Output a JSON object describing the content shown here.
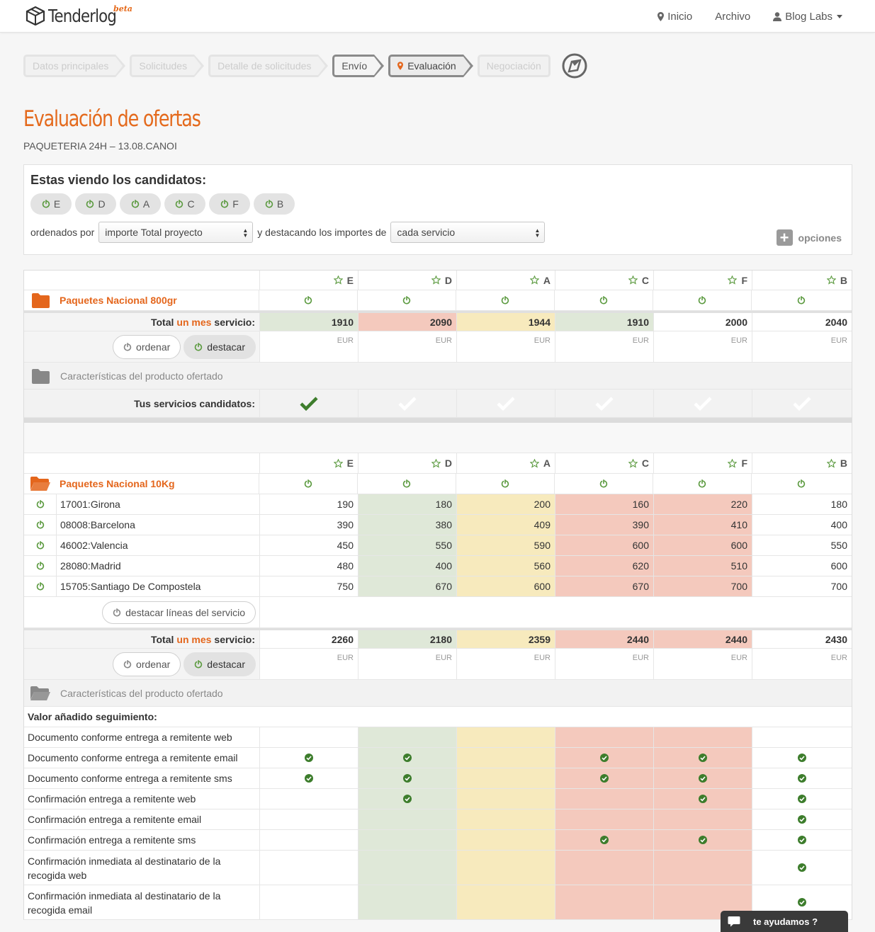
{
  "nav": {
    "brand": "Tenderlog",
    "beta": "beta",
    "links": [
      {
        "label": "Inicio",
        "icon": "map-marker-icon"
      },
      {
        "label": "Archivo"
      },
      {
        "label": "Blog Labs",
        "icon": "user-icon",
        "dropdown": true
      }
    ]
  },
  "steps": [
    {
      "label": "Datos principales",
      "state": "pending"
    },
    {
      "label": "Solicitudes",
      "state": "pending"
    },
    {
      "label": "Detalle de solicitudes",
      "state": "pending"
    },
    {
      "label": "Envío",
      "state": "done"
    },
    {
      "label": "Evaluación",
      "state": "active"
    },
    {
      "label": "Negociación",
      "state": "pending"
    }
  ],
  "page": {
    "title": "Evaluación de ofertas",
    "subtitle": "PAQUETERIA 24H – 13.08.CANOI"
  },
  "candidates": {
    "title": "Estas viendo los candidatos:",
    "pills": [
      "E",
      "D",
      "A",
      "C",
      "F",
      "B"
    ],
    "sort_label": "ordenados por",
    "sort_value": "importe Total proyecto",
    "highlight_label": "y destacando los importes de",
    "highlight_value": "cada servicio",
    "options_label": "opciones"
  },
  "columns": [
    "E",
    "D",
    "A",
    "C",
    "F",
    "B"
  ],
  "section1": {
    "name": "Paquetes Nacional 800gr",
    "total_prefix": "Total",
    "total_hl": "un mes",
    "total_suffix": "servicio:",
    "totals": [
      "1910",
      "2090",
      "1944",
      "1910",
      "2000",
      "2040"
    ],
    "currency": "EUR",
    "btn_order": "ordenar",
    "btn_highlight": "destacar",
    "characteristics": "Características del producto ofertado",
    "candidates_label": "Tus servicios candidatos:"
  },
  "section2": {
    "name": "Paquetes Nacional 10Kg",
    "lines": [
      {
        "label": "17001:Girona",
        "values": [
          "190",
          "180",
          "200",
          "160",
          "220",
          "180"
        ]
      },
      {
        "label": "08008:Barcelona",
        "values": [
          "390",
          "380",
          "409",
          "390",
          "410",
          "400"
        ]
      },
      {
        "label": "46002:Valencia",
        "values": [
          "450",
          "550",
          "590",
          "600",
          "600",
          "550"
        ]
      },
      {
        "label": "28080:Madrid",
        "values": [
          "480",
          "400",
          "560",
          "620",
          "510",
          "600"
        ]
      },
      {
        "label": "15705:Santiago De Compostela",
        "values": [
          "750",
          "670",
          "600",
          "670",
          "700",
          "700"
        ]
      }
    ],
    "btn_lines": "destacar líneas del servicio",
    "total_prefix": "Total",
    "total_hl": "un mes",
    "total_suffix": "servicio:",
    "totals": [
      "2260",
      "2180",
      "2359",
      "2440",
      "2440",
      "2430"
    ],
    "currency": "EUR",
    "btn_order": "ordenar",
    "btn_highlight": "destacar",
    "characteristics": "Características del producto ofertado",
    "value_added_title": "Valor añadido seguimiento:",
    "features": [
      {
        "label": "Documento conforme entrega a remitente web",
        "checks": [
          false,
          false,
          false,
          false,
          false,
          false
        ]
      },
      {
        "label": "Documento conforme entrega a remitente email",
        "checks": [
          true,
          true,
          false,
          true,
          true,
          true
        ]
      },
      {
        "label": "Documento conforme entrega a remitente sms",
        "checks": [
          true,
          true,
          false,
          true,
          true,
          true
        ]
      },
      {
        "label": "Confirmación entrega a remitente web",
        "checks": [
          false,
          true,
          false,
          false,
          true,
          true
        ]
      },
      {
        "label": "Confirmación entrega a remitente email",
        "checks": [
          false,
          false,
          false,
          false,
          false,
          true
        ]
      },
      {
        "label": "Confirmación entrega a remitente sms",
        "checks": [
          false,
          false,
          false,
          true,
          true,
          true
        ]
      },
      {
        "label": "Confirmación inmediata al destinatario de la recogida web",
        "checks": [
          false,
          false,
          false,
          false,
          false,
          true
        ]
      },
      {
        "label": "Confirmación inmediata al destinatario de la recogida email",
        "checks": [
          false,
          false,
          false,
          false,
          false,
          true
        ]
      }
    ]
  },
  "help": {
    "label": "te ayudamos ?"
  },
  "colors": {
    "accent": "#e4661c",
    "green": "#5b9a3f",
    "ok_bg": "#dfe8d8",
    "mid_bg": "#f7eabd",
    "bad_bg": "#f4c9bd"
  }
}
